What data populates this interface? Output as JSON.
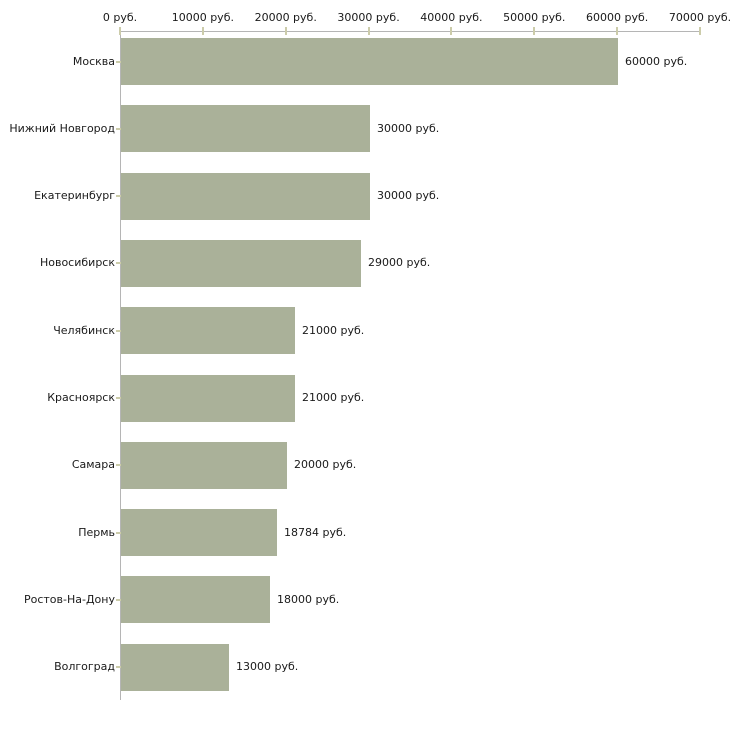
{
  "chart_data": {
    "type": "bar",
    "orientation": "horizontal",
    "title": "",
    "xlabel": "",
    "ylabel": "",
    "grid": false,
    "legend": null,
    "categories": [
      "Москва",
      "Нижний Новгород",
      "Екатеринбург",
      "Новосибирск",
      "Челябинск",
      "Красноярск",
      "Самара",
      "Пермь",
      "Ростов-На-Дону",
      "Волгоград"
    ],
    "values": [
      60000,
      30000,
      30000,
      29000,
      21000,
      21000,
      20000,
      18784,
      18000,
      13000
    ],
    "value_labels": [
      "60000 руб.",
      "30000 руб.",
      "30000 руб.",
      "29000 руб.",
      "21000 руб.",
      "21000 руб.",
      "20000 руб.",
      "18784 руб.",
      "18000 руб.",
      "13000 руб."
    ],
    "x_ticks": [
      0,
      10000,
      20000,
      30000,
      40000,
      50000,
      60000,
      70000
    ],
    "x_tick_labels": [
      "0 руб.",
      "10000 руб.",
      "20000 руб.",
      "30000 руб.",
      "40000 руб.",
      "50000 руб.",
      "60000 руб.",
      "70000 руб."
    ],
    "xlim": [
      0,
      70000
    ],
    "unit": "руб.",
    "colors": {
      "bar": "#aab199",
      "axis_line": "#b5b5b5",
      "tick_mark": "#ccccaa",
      "text": "#1a1a1a",
      "background": "#ffffff"
    }
  }
}
